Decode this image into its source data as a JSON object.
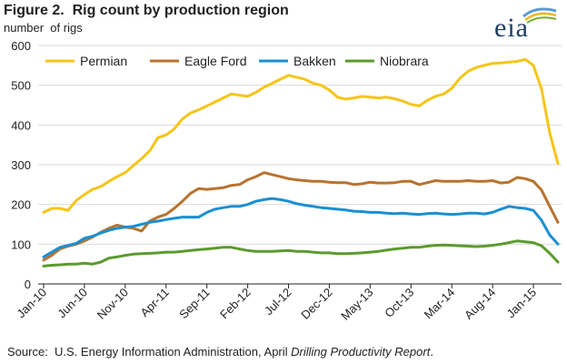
{
  "header": {
    "title": "Figure 2.  Rig count by production region",
    "subtitle": "number  of rigs"
  },
  "logo": {
    "text": "eia"
  },
  "footer": {
    "source_prefix": "Source:  U.S. Energy Information Administration, April ",
    "source_italic": "Drilling Productivity Report",
    "source_suffix": "."
  },
  "chart_data": {
    "type": "line",
    "title": "Figure 2.  Rig count by production region",
    "ylabel": "number  of rigs",
    "xlabel": "",
    "ylim": [
      0,
      600
    ],
    "yticks": [
      0,
      100,
      200,
      300,
      400,
      500,
      600
    ],
    "grid": true,
    "legend_position": "top",
    "x_tick_labels": [
      "Jan-10",
      "Jun-10",
      "Nov-10",
      "Apr-11",
      "Sep-11",
      "Feb-12",
      "Jul-12",
      "Dec-12",
      "May-13",
      "Oct-13",
      "Mar-14",
      "Aug-14",
      "Jan-15"
    ],
    "x_tick_index": [
      0,
      5,
      10,
      15,
      20,
      25,
      30,
      35,
      40,
      45,
      50,
      55,
      60
    ],
    "x": [
      "Jan-10",
      "Feb-10",
      "Mar-10",
      "Apr-10",
      "May-10",
      "Jun-10",
      "Jul-10",
      "Aug-10",
      "Sep-10",
      "Oct-10",
      "Nov-10",
      "Dec-10",
      "Jan-11",
      "Feb-11",
      "Mar-11",
      "Apr-11",
      "May-11",
      "Jun-11",
      "Jul-11",
      "Aug-11",
      "Sep-11",
      "Oct-11",
      "Nov-11",
      "Dec-11",
      "Jan-12",
      "Feb-12",
      "Mar-12",
      "Apr-12",
      "May-12",
      "Jun-12",
      "Jul-12",
      "Aug-12",
      "Sep-12",
      "Oct-12",
      "Nov-12",
      "Dec-12",
      "Jan-13",
      "Feb-13",
      "Mar-13",
      "Apr-13",
      "May-13",
      "Jun-13",
      "Jul-13",
      "Aug-13",
      "Sep-13",
      "Oct-13",
      "Nov-13",
      "Dec-13",
      "Jan-14",
      "Feb-14",
      "Mar-14",
      "Apr-14",
      "May-14",
      "Jun-14",
      "Jul-14",
      "Aug-14",
      "Sep-14",
      "Oct-14",
      "Nov-14",
      "Dec-14",
      "Jan-15",
      "Feb-15",
      "Mar-15",
      "Apr-15"
    ],
    "series": [
      {
        "name": "Permian",
        "color": "#f5c518",
        "values": [
          180,
          190,
          190,
          185,
          210,
          225,
          238,
          245,
          258,
          270,
          280,
          298,
          315,
          335,
          368,
          375,
          390,
          415,
          430,
          438,
          448,
          458,
          468,
          478,
          475,
          472,
          482,
          495,
          505,
          515,
          525,
          520,
          515,
          505,
          500,
          488,
          470,
          465,
          468,
          472,
          470,
          468,
          470,
          466,
          460,
          452,
          448,
          462,
          472,
          478,
          492,
          518,
          535,
          545,
          550,
          555,
          556,
          558,
          560,
          565,
          550,
          490,
          380,
          303
        ]
      },
      {
        "name": "Eagle Ford",
        "color": "#b8732e",
        "values": [
          60,
          72,
          88,
          95,
          100,
          108,
          118,
          130,
          140,
          148,
          143,
          140,
          133,
          158,
          168,
          175,
          190,
          208,
          228,
          240,
          238,
          240,
          242,
          248,
          250,
          262,
          270,
          280,
          275,
          270,
          265,
          262,
          260,
          258,
          258,
          256,
          255,
          255,
          250,
          252,
          256,
          254,
          254,
          255,
          258,
          258,
          250,
          255,
          260,
          258,
          258,
          258,
          260,
          258,
          258,
          260,
          254,
          256,
          268,
          265,
          258,
          236,
          195,
          155
        ]
      },
      {
        "name": "Bakken",
        "color": "#1b8fd2",
        "values": [
          68,
          80,
          92,
          97,
          102,
          115,
          120,
          128,
          135,
          140,
          143,
          145,
          150,
          155,
          158,
          162,
          165,
          168,
          168,
          168,
          180,
          188,
          192,
          195,
          195,
          200,
          208,
          212,
          215,
          212,
          208,
          202,
          198,
          195,
          192,
          190,
          188,
          186,
          183,
          182,
          180,
          180,
          178,
          177,
          178,
          176,
          175,
          177,
          178,
          176,
          175,
          176,
          178,
          178,
          176,
          180,
          188,
          195,
          192,
          190,
          185,
          160,
          123,
          100
        ]
      },
      {
        "name": "Niobrara",
        "color": "#5c9a2e",
        "values": [
          45,
          47,
          48,
          50,
          50,
          52,
          50,
          55,
          65,
          68,
          72,
          75,
          76,
          77,
          78,
          80,
          80,
          82,
          84,
          86,
          88,
          90,
          92,
          92,
          88,
          84,
          82,
          82,
          82,
          83,
          84,
          82,
          82,
          80,
          78,
          78,
          76,
          76,
          77,
          78,
          80,
          82,
          85,
          88,
          90,
          92,
          92,
          95,
          97,
          98,
          97,
          96,
          95,
          94,
          95,
          97,
          100,
          104,
          108,
          106,
          104,
          96,
          77,
          55
        ]
      }
    ]
  }
}
